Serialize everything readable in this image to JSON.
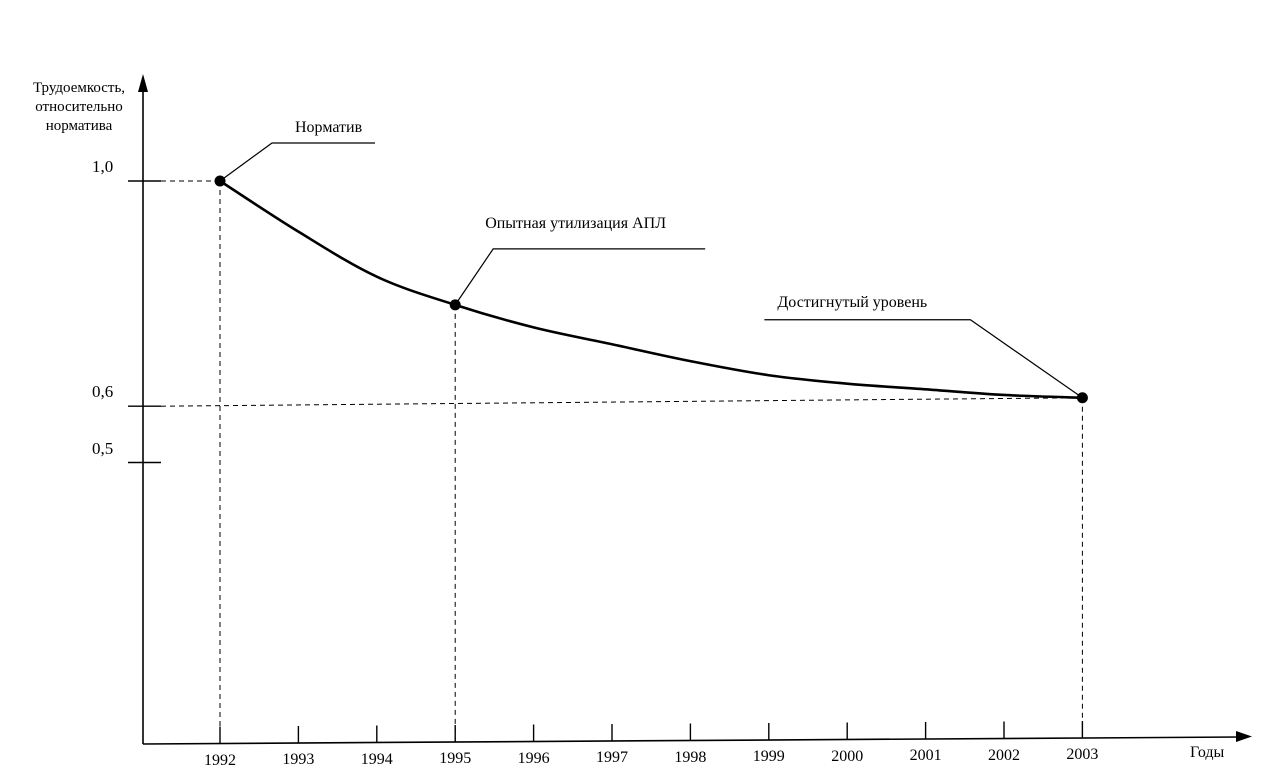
{
  "chart_data": {
    "type": "line",
    "ylabel": "Трудоемкость, относительно норматива",
    "xlabel": "Годы",
    "x_ticks": [
      "1992",
      "1993",
      "1994",
      "1995",
      "1996",
      "1997",
      "1998",
      "1999",
      "2000",
      "2001",
      "2002",
      "2003"
    ],
    "y_ticks": [
      {
        "value": 1.0,
        "label": "1,0"
      },
      {
        "value": 0.6,
        "label": "0,6"
      },
      {
        "value": 0.5,
        "label": "0,5"
      }
    ],
    "series": [
      {
        "x": [
          1992,
          1993,
          1994,
          1995,
          1996,
          1997,
          1998,
          1999,
          2000,
          2001,
          2002,
          2003
        ],
        "y": [
          1.0,
          0.91,
          0.83,
          0.78,
          0.74,
          0.71,
          0.68,
          0.655,
          0.64,
          0.63,
          0.62,
          0.615
        ]
      }
    ],
    "points": [
      {
        "x": 1992,
        "y": 1.0,
        "label": "Норматив"
      },
      {
        "x": 1995,
        "y": 0.78,
        "label": "Опытная утилизация АПЛ"
      },
      {
        "x": 2003,
        "y": 0.615,
        "label": "Достигнутый уровень"
      }
    ],
    "xlim": [
      1991.1,
      2004.2
    ],
    "ylim": [
      0.0,
      1.04
    ],
    "grid": false
  }
}
